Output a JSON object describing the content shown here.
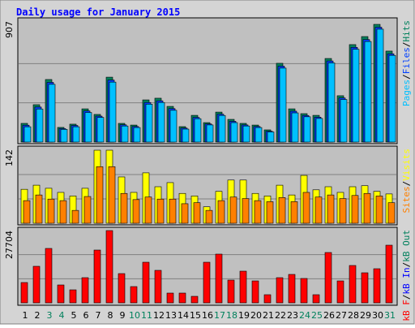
{
  "chart_data": {
    "type": "bar",
    "title": "Daily usage for January 2015",
    "categories": [
      1,
      2,
      3,
      4,
      5,
      6,
      7,
      8,
      9,
      10,
      11,
      12,
      13,
      14,
      15,
      16,
      17,
      18,
      19,
      20,
      21,
      22,
      23,
      24,
      25,
      26,
      27,
      28,
      29,
      30,
      31
    ],
    "weekend_days": [
      3,
      4,
      10,
      11,
      17,
      18,
      24,
      25,
      31
    ],
    "weekend_color": "#00805c",
    "legend_separator": "/",
    "panels": [
      {
        "ymax": 907,
        "series": [
          {
            "name": "Hits",
            "color": "#00805c",
            "values": [
              144,
              288,
              482,
              113,
              138,
              256,
              213,
              500,
              144,
              131,
              325,
              338,
              275,
              119,
              206,
              150,
              231,
              175,
              144,
              131,
              94,
              607,
              256,
              219,
              206,
              644,
              357,
              751,
              813,
              907,
              701
            ]
          },
          {
            "name": "Files",
            "color": "#0040ff",
            "values": [
              130,
              270,
              460,
              104,
              128,
              240,
              200,
              478,
              133,
              120,
              305,
              318,
              258,
              108,
              190,
              140,
              215,
              160,
              132,
              120,
              84,
              585,
              238,
              205,
              192,
              625,
              340,
              730,
              790,
              885,
              680
            ]
          },
          {
            "name": "Pages",
            "color": "#00c0ff",
            "values": [
              118,
              255,
              445,
              98,
              118,
              228,
              190,
              462,
              124,
              112,
              292,
              305,
              245,
              100,
              180,
              132,
              205,
              150,
              124,
              112,
              78,
              570,
              225,
              195,
              182,
              610,
              328,
              715,
              775,
              870,
              668
            ]
          }
        ]
      },
      {
        "ymax": 142,
        "series": [
          {
            "name": "Visits",
            "color": "#ffff00",
            "values": [
              66,
              74,
              68,
              60,
              53,
              68,
              142,
              142,
              90,
              60,
              98,
              71,
              79,
              58,
              53,
              32,
              62,
              84,
              84,
              58,
              53,
              74,
              55,
              93,
              65,
              71,
              60,
              71,
              73,
              62,
              57
            ]
          },
          {
            "name": "Sites",
            "color": "#ff8000",
            "values": [
              44,
              55,
              47,
              44,
              25,
              52,
              110,
              110,
              58,
              46,
              51,
              47,
              47,
              38,
              40,
              25,
              44,
              51,
              48,
              44,
              42,
              50,
              42,
              60,
              51,
              55,
              48,
              54,
              58,
              53,
              40
            ]
          }
        ]
      },
      {
        "ymax": 27704,
        "series": [
          {
            "name": "kB F",
            "color": "#ff0000",
            "values": [
              7782,
              14007,
              20856,
              6848,
              4980,
              9650,
              20234,
              27704,
              11206,
              6226,
              15564,
              12451,
              3735,
              3735,
              2490,
              15564,
              18677,
              8716,
              12140,
              8405,
              3113,
              9650,
              10895,
              9339,
              3113,
              19300,
              8405,
              14319,
              11517,
              13074,
              22101
            ]
          }
        ],
        "legend_only": [
          {
            "name": "kB In",
            "color": "#0000ff"
          },
          {
            "name": "kB Out",
            "color": "#00805c"
          }
        ]
      }
    ]
  }
}
